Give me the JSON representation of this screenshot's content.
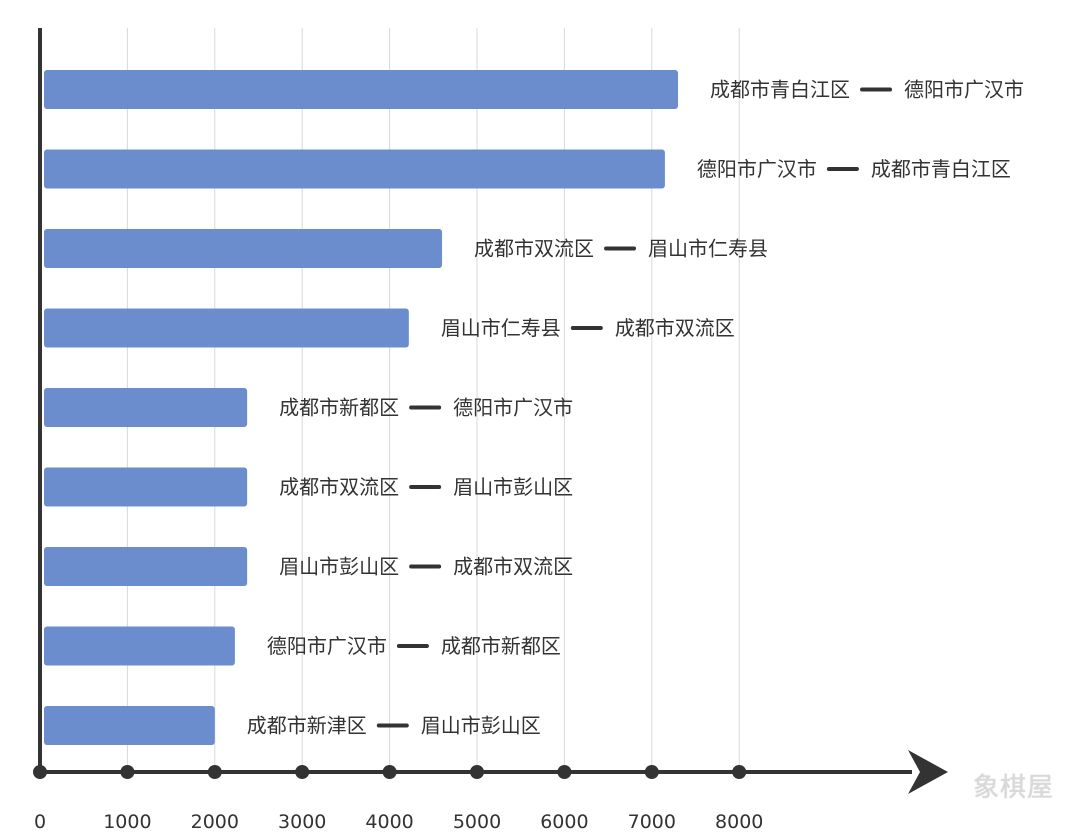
{
  "chart_data": {
    "type": "bar",
    "orientation": "horizontal",
    "grid": true,
    "xlim": [
      0,
      8000
    ],
    "x_ticks": [
      "0",
      "1000",
      "2000",
      "3000",
      "4000",
      "5000",
      "6000",
      "7000",
      "8000"
    ],
    "categories": [
      {
        "from": "成都市青白江区",
        "to": "德阳市广汉市"
      },
      {
        "from": "德阳市广汉市",
        "to": "成都市青白江区"
      },
      {
        "from": "成都市双流区",
        "to": "眉山市仁寿县"
      },
      {
        "from": "眉山市仁寿县",
        "to": "成都市双流区"
      },
      {
        "from": "成都市新都区",
        "to": "德阳市广汉市"
      },
      {
        "from": "成都市双流区",
        "to": "眉山市彭山区"
      },
      {
        "from": "眉山市彭山区",
        "to": "成都市双流区"
      },
      {
        "from": "德阳市广汉市",
        "to": "成都市新都区"
      },
      {
        "from": "成都市新津区",
        "to": "眉山市彭山区"
      }
    ],
    "values": [
      7300,
      7150,
      4600,
      4220,
      2370,
      2370,
      2370,
      2230,
      2000
    ],
    "bar_color": "#6b8ccd",
    "axis_color": "#333333",
    "grid_color": "#d8d8d8"
  },
  "watermark": "象棋屋"
}
